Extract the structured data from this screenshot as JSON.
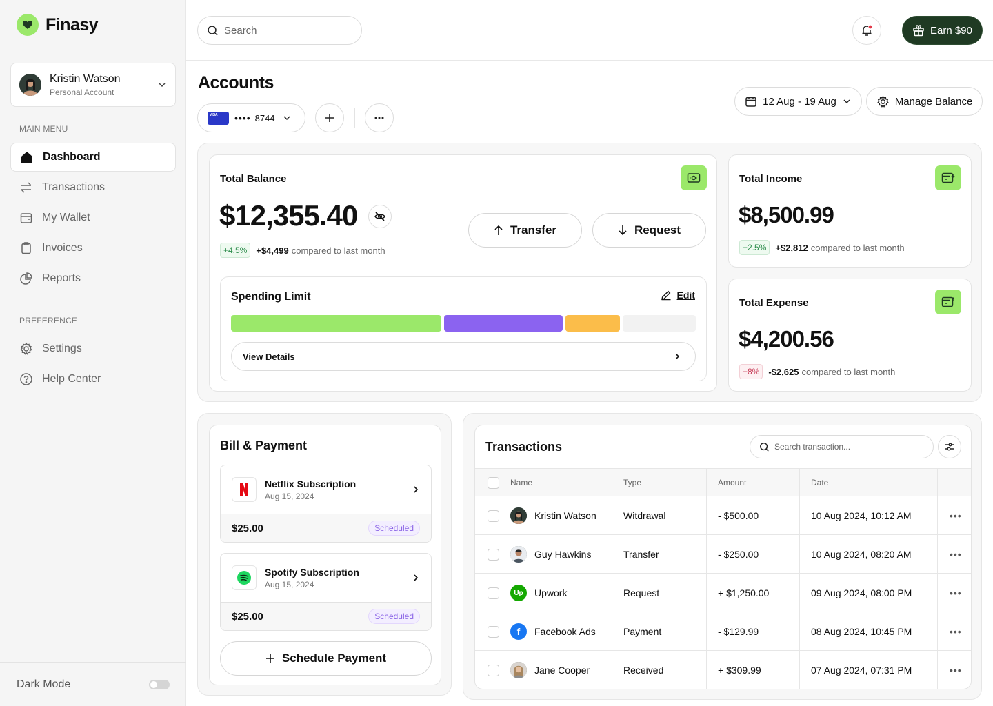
{
  "brand": {
    "name": "Finasy",
    "accent": "#9be86a",
    "dark": "#1f3a23"
  },
  "profile": {
    "name": "Kristin Watson",
    "type": "Personal Account"
  },
  "sidebar": {
    "main_label": "MAIN MENU",
    "items": [
      {
        "label": "Dashboard",
        "icon": "home-icon"
      },
      {
        "label": "Transactions",
        "icon": "swap-icon"
      },
      {
        "label": "My Wallet",
        "icon": "wallet-icon"
      },
      {
        "label": "Invoices",
        "icon": "clipboard-icon"
      },
      {
        "label": "Reports",
        "icon": "pie-chart-icon"
      }
    ],
    "pref_label": "PREFERENCE",
    "pref_items": [
      {
        "label": "Settings",
        "icon": "gear-icon"
      },
      {
        "label": "Help Center",
        "icon": "help-icon"
      }
    ],
    "dark_mode_label": "Dark Mode"
  },
  "topbar": {
    "search_placeholder": "Search",
    "earn_label": "Earn $90"
  },
  "page": {
    "title": "Accounts",
    "card_masked": "••••",
    "card_last4": "8744",
    "date_range": "12 Aug - 19 Aug",
    "manage_balance": "Manage Balance"
  },
  "balance": {
    "title": "Total Balance",
    "amount": "$12,355.40",
    "badge": "+4.5%",
    "delta": "+$4,499",
    "note": "compared to last month",
    "transfer": "Transfer",
    "request": "Request"
  },
  "spending": {
    "title": "Spending Limit",
    "edit": "Edit",
    "view_details": "View Details",
    "segments": [
      {
        "fraction": 0.46,
        "color": "#9be86a"
      },
      {
        "fraction": 0.26,
        "color": "#8b63f0"
      },
      {
        "fraction": 0.12,
        "color": "#fbbd4a"
      },
      {
        "fraction": 0.16,
        "color": "#f2f2f2"
      }
    ]
  },
  "income": {
    "title": "Total Income",
    "amount": "$8,500.99",
    "badge": "+2.5%",
    "delta": "+$2,812",
    "note": "compared to last month"
  },
  "expense": {
    "title": "Total Expense",
    "amount": "$4,200.56",
    "badge": "+8%",
    "delta": "-$2,625",
    "note": "compared to last month"
  },
  "bills": {
    "title": "Bill & Payment",
    "items": [
      {
        "name": "Netflix Subscription",
        "date": "Aug 15, 2024",
        "amount": "$25.00",
        "status": "Scheduled"
      },
      {
        "name": "Spotify Subscription",
        "date": "Aug 15, 2024",
        "amount": "$25.00",
        "status": "Scheduled"
      }
    ],
    "schedule_label": "Schedule Payment"
  },
  "transactions": {
    "title": "Transactions",
    "search_placeholder": "Search transaction...",
    "columns": [
      "Name",
      "Type",
      "Amount",
      "Date"
    ],
    "rows": [
      {
        "name": "Kristin Watson",
        "type": "Witdrawal",
        "amount": "- $500.00",
        "date": "10 Aug 2024, 10:12 AM",
        "avatar": "person-avatar"
      },
      {
        "name": "Guy Hawkins",
        "type": "Transfer",
        "amount": "- $250.00",
        "date": "10 Aug 2024, 08:20 AM",
        "avatar": "person-avatar"
      },
      {
        "name": "Upwork",
        "type": "Request",
        "amount": "+ $1,250.00",
        "date": "09 Aug 2024, 08:00 PM",
        "avatar": "upwork-logo",
        "logo_text": "Up"
      },
      {
        "name": "Facebook Ads",
        "type": "Payment",
        "amount": "- $129.99",
        "date": "08 Aug 2024, 10:45 PM",
        "avatar": "facebook-logo",
        "logo_text": "f"
      },
      {
        "name": "Jane Cooper",
        "type": "Received",
        "amount": "+ $309.99",
        "date": "07 Aug 2024, 07:31 PM",
        "avatar": "person-avatar"
      }
    ]
  }
}
